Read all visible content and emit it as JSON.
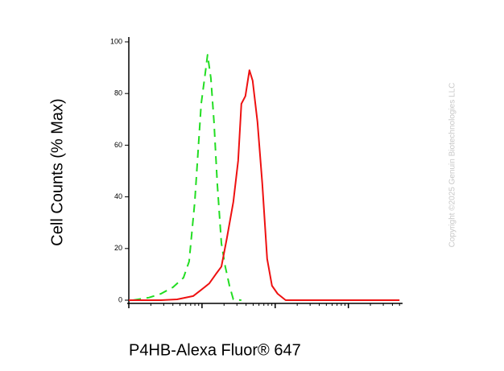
{
  "chart_data": {
    "type": "line",
    "ylabel": "Cell Counts (% Max)",
    "xlabel": "P4HB-Alexa Fluor® 647",
    "watermark": "Copyright ©2025 Genuin Biotechnologies LLC",
    "xscale": "log",
    "xlim": [
      1,
      5500
    ],
    "xticks": [
      1,
      10,
      100,
      1000
    ],
    "xminorticks": [
      2,
      3,
      4,
      5,
      6,
      7,
      8,
      9,
      20,
      30,
      40,
      50,
      60,
      70,
      80,
      90,
      200,
      300,
      400,
      500,
      600,
      700,
      800,
      900,
      2000,
      3000,
      4000,
      5000
    ],
    "ylim": [
      0,
      100
    ],
    "yticks": [
      0,
      20,
      40,
      60,
      80,
      100
    ],
    "series": [
      {
        "color": "#22dd22",
        "dash": true,
        "x": [
          1.14,
          1.88,
          2.75,
          4.02,
          4.8,
          5.59,
          6.67,
          7.96,
          9.75,
          11.1,
          11.9,
          13.2,
          14.6,
          16.2,
          18.4,
          20.8,
          23.7,
          26.8,
          34.5
        ],
        "values": [
          0,
          1,
          2.5,
          5,
          7,
          8.7,
          15,
          38,
          76,
          88,
          95,
          86,
          69,
          45,
          22,
          13,
          5.6,
          0.3,
          0
        ]
      },
      {
        "color": "#ee1111",
        "dash": false,
        "x": [
          1,
          2.75,
          4.56,
          7.57,
          9.75,
          12.6,
          15.4,
          18.4,
          21.9,
          26.8,
          31.2,
          34.5,
          39.2,
          44.5,
          49.2,
          57.3,
          66.7,
          77.6,
          90.4,
          108,
          139,
          5000
        ],
        "values": [
          0,
          0,
          0.3,
          1.6,
          4,
          6.5,
          10,
          13,
          24,
          38,
          54,
          76,
          79,
          89,
          85,
          69,
          45,
          16,
          5.6,
          2.5,
          0,
          0
        ]
      }
    ]
  }
}
